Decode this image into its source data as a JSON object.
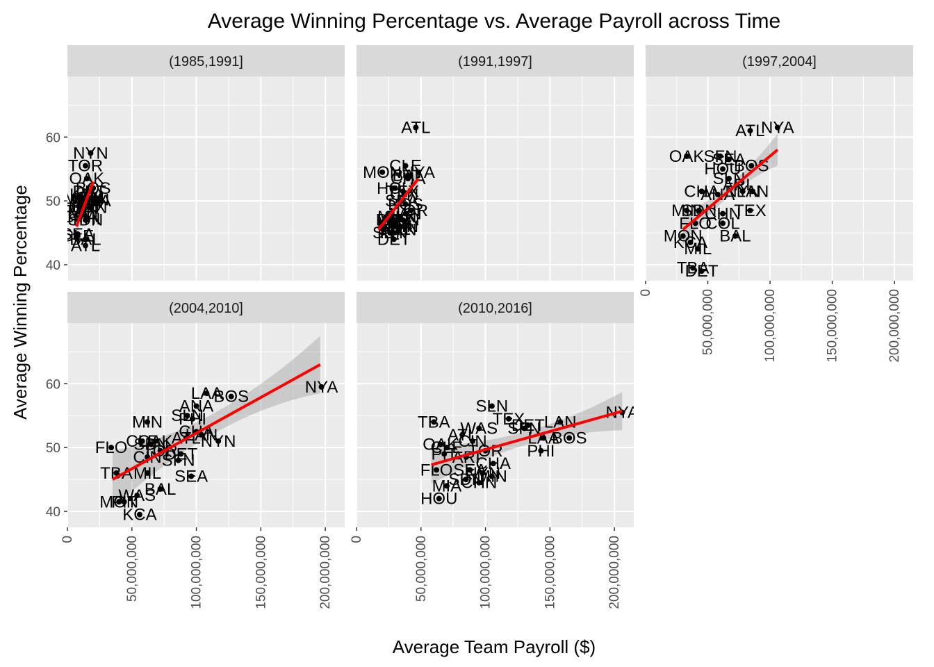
{
  "chart_data": {
    "type": "scatter",
    "title": "Average Winning Percentage vs. Average Payroll across Time",
    "xlabel": "Average Team Payroll ($)",
    "ylabel": "Average Winning Percentage",
    "x_tick_labels": [
      "0",
      "50,000,000",
      "100,000,000",
      "150,000,000",
      "200,000,000"
    ],
    "x_ticks": [
      0,
      50000000,
      100000000,
      150000000,
      200000000
    ],
    "xlim": [
      0,
      215000000
    ],
    "y_tick_labels": [
      "40",
      "50",
      "60"
    ],
    "y_ticks": [
      40,
      50,
      60
    ],
    "ylim": [
      37.5,
      69.5
    ],
    "grid": true,
    "trend": "linear fit with confidence band",
    "colors": {
      "panel": "#ebebeb",
      "strip": "#d9d9d9",
      "grid": "#ffffff",
      "fit_line": "#ff0000",
      "band": "#999999",
      "point": "#000000"
    },
    "panels": [
      {
        "label": "(1985,1991]",
        "fit": {
          "x": [
            7000000,
            20000000
          ],
          "y": [
            46,
            53
          ],
          "band": 1.8
        },
        "points": [
          {
            "team": "NYN",
            "x": 18000000,
            "y": 57.5
          },
          {
            "team": "TOR",
            "x": 14000000,
            "y": 55.5
          },
          {
            "team": "OAK",
            "x": 15000000,
            "y": 53.5
          },
          {
            "team": "BOS",
            "x": 20000000,
            "y": 52.0
          },
          {
            "team": "DET",
            "x": 17000000,
            "y": 51.5
          },
          {
            "team": "KCA",
            "x": 15000000,
            "y": 51.0
          },
          {
            "team": "CAL",
            "x": 19000000,
            "y": 50.5
          },
          {
            "team": "MON",
            "x": 12000000,
            "y": 50.5
          },
          {
            "team": "SLN",
            "x": 16000000,
            "y": 50.3
          },
          {
            "team": "LAN",
            "x": 20000000,
            "y": 50.2
          },
          {
            "team": "CIN",
            "x": 13000000,
            "y": 50.0
          },
          {
            "team": "MIL",
            "x": 14000000,
            "y": 50.0
          },
          {
            "team": "NYA",
            "x": 21000000,
            "y": 50.0
          },
          {
            "team": "SFN",
            "x": 15000000,
            "y": 49.8
          },
          {
            "team": "CHN",
            "x": 17000000,
            "y": 49.0
          },
          {
            "team": "HOU",
            "x": 12000000,
            "y": 49.2
          },
          {
            "team": "TEX",
            "x": 11000000,
            "y": 48.8
          },
          {
            "team": "MIN",
            "x": 12000000,
            "y": 48.3
          },
          {
            "team": "CHA",
            "x": 10000000,
            "y": 47.5
          },
          {
            "team": "PIT",
            "x": 10000000,
            "y": 47.5
          },
          {
            "team": "PHI",
            "x": 15000000,
            "y": 47.2
          },
          {
            "team": "SDN",
            "x": 14000000,
            "y": 47.0
          },
          {
            "team": "SEA",
            "x": 8000000,
            "y": 44.8
          },
          {
            "team": "CLE",
            "x": 8000000,
            "y": 44.5
          },
          {
            "team": "BAL",
            "x": 14000000,
            "y": 44.0
          },
          {
            "team": "ATL",
            "x": 14000000,
            "y": 43.0
          }
        ]
      },
      {
        "label": "(1991,1997]",
        "fit": {
          "x": [
            17000000,
            48000000
          ],
          "y": [
            45.5,
            53.5
          ],
          "band": 1.8
        },
        "points": [
          {
            "team": "ATL",
            "x": 46000000,
            "y": 61.5
          },
          {
            "team": "CLE",
            "x": 38000000,
            "y": 55.5
          },
          {
            "team": "NYA",
            "x": 48000000,
            "y": 54.5
          },
          {
            "team": "MON",
            "x": 20000000,
            "y": 54.5
          },
          {
            "team": "BAL",
            "x": 40000000,
            "y": 54.0
          },
          {
            "team": "CHA",
            "x": 40000000,
            "y": 53.5
          },
          {
            "team": "HOU",
            "x": 30000000,
            "y": 52.0
          },
          {
            "team": "TEX",
            "x": 36000000,
            "y": 51.5
          },
          {
            "team": "CIN",
            "x": 37000000,
            "y": 51.0
          },
          {
            "team": "SEA",
            "x": 35000000,
            "y": 50.0
          },
          {
            "team": "BOS",
            "x": 38000000,
            "y": 49.5
          },
          {
            "team": "TOR",
            "x": 42000000,
            "y": 48.5
          },
          {
            "team": "LAN",
            "x": 38000000,
            "y": 48.0
          },
          {
            "team": "MIL",
            "x": 27000000,
            "y": 47.5
          },
          {
            "team": "SLN",
            "x": 34000000,
            "y": 47.5
          },
          {
            "team": "CAL",
            "x": 32000000,
            "y": 47.0
          },
          {
            "team": "SFN",
            "x": 36000000,
            "y": 47.0
          },
          {
            "team": "PIT",
            "x": 25000000,
            "y": 47.0
          },
          {
            "team": "KCA",
            "x": 30000000,
            "y": 46.5
          },
          {
            "team": "MIN",
            "x": 28000000,
            "y": 46.0
          },
          {
            "team": "OAK",
            "x": 30000000,
            "y": 46.0
          },
          {
            "team": "CHN",
            "x": 34000000,
            "y": 46.0
          },
          {
            "team": "NYN",
            "x": 33000000,
            "y": 45.5
          },
          {
            "team": "SDN",
            "x": 26000000,
            "y": 45.0
          },
          {
            "team": "PHI",
            "x": 29000000,
            "y": 45.0
          },
          {
            "team": "DET",
            "x": 29000000,
            "y": 44.0
          }
        ]
      },
      {
        "label": "(1997,2004]",
        "fit": {
          "x": [
            30000000,
            106000000
          ],
          "y": [
            45.5,
            58
          ],
          "band": 2.5
        },
        "points": [
          {
            "team": "NYA",
            "x": 106000000,
            "y": 61.5
          },
          {
            "team": "ATL",
            "x": 84000000,
            "y": 61.0
          },
          {
            "team": "OAK",
            "x": 33000000,
            "y": 57.0
          },
          {
            "team": "SFN",
            "x": 60000000,
            "y": 57.0
          },
          {
            "team": "SEA",
            "x": 67000000,
            "y": 56.5
          },
          {
            "team": "BOS",
            "x": 85000000,
            "y": 55.5
          },
          {
            "team": "HOU",
            "x": 62000000,
            "y": 55.0
          },
          {
            "team": "SLN",
            "x": 67000000,
            "y": 53.5
          },
          {
            "team": "ARI",
            "x": 73000000,
            "y": 52.5
          },
          {
            "team": "LAN",
            "x": 86000000,
            "y": 51.5
          },
          {
            "team": "NYN",
            "x": 78000000,
            "y": 51.5
          },
          {
            "team": "CHA",
            "x": 45000000,
            "y": 51.5
          },
          {
            "team": "ANA",
            "x": 58000000,
            "y": 51.0
          },
          {
            "team": "MIN",
            "x": 33000000,
            "y": 48.5
          },
          {
            "team": "TEX",
            "x": 84000000,
            "y": 48.5
          },
          {
            "team": "SDN",
            "x": 43000000,
            "y": 48.5
          },
          {
            "team": "CHN",
            "x": 62000000,
            "y": 48.0
          },
          {
            "team": "FLO",
            "x": 40000000,
            "y": 46.5
          },
          {
            "team": "COL",
            "x": 62000000,
            "y": 46.5
          },
          {
            "team": "MON",
            "x": 30000000,
            "y": 44.5
          },
          {
            "team": "BAL",
            "x": 72000000,
            "y": 44.5
          },
          {
            "team": "KCA",
            "x": 36000000,
            "y": 43.5
          },
          {
            "team": "MIL",
            "x": 42000000,
            "y": 42.5
          },
          {
            "team": "TBA",
            "x": 38000000,
            "y": 39.5
          },
          {
            "team": "DET",
            "x": 45000000,
            "y": 39.0
          }
        ]
      },
      {
        "label": "(2004,2010]",
        "fit": {
          "x": [
            35000000,
            196000000
          ],
          "y": [
            45,
            63
          ],
          "band": 4.5
        },
        "points": [
          {
            "team": "NYA",
            "x": 197000000,
            "y": 59.5
          },
          {
            "team": "LAA",
            "x": 108000000,
            "y": 58.5
          },
          {
            "team": "BOS",
            "x": 127000000,
            "y": 58.0
          },
          {
            "team": "ANA",
            "x": 100000000,
            "y": 56.5
          },
          {
            "team": "SLN",
            "x": 93000000,
            "y": 55.0
          },
          {
            "team": "PHI",
            "x": 97000000,
            "y": 54.5
          },
          {
            "team": "MIN",
            "x": 62000000,
            "y": 54.0
          },
          {
            "team": "CHA",
            "x": 100000000,
            "y": 52.5
          },
          {
            "team": "LAN",
            "x": 104000000,
            "y": 52.0
          },
          {
            "team": "ATL",
            "x": 92000000,
            "y": 51.5
          },
          {
            "team": "OAK",
            "x": 68000000,
            "y": 51.0
          },
          {
            "team": "NYN",
            "x": 117000000,
            "y": 51.0
          },
          {
            "team": "CLE",
            "x": 58000000,
            "y": 51.0
          },
          {
            "team": "SDN",
            "x": 65000000,
            "y": 50.5
          },
          {
            "team": "FLO",
            "x": 34000000,
            "y": 50.0
          },
          {
            "team": "TOR",
            "x": 72000000,
            "y": 49.5
          },
          {
            "team": "DET",
            "x": 88000000,
            "y": 49.0
          },
          {
            "team": "CIN",
            "x": 62000000,
            "y": 48.5
          },
          {
            "team": "SFN",
            "x": 86000000,
            "y": 48.0
          },
          {
            "team": "TBA",
            "x": 38000000,
            "y": 46.0
          },
          {
            "team": "MIL",
            "x": 62000000,
            "y": 46.0
          },
          {
            "team": "SEA",
            "x": 96000000,
            "y": 45.5
          },
          {
            "team": "BAL",
            "x": 72000000,
            "y": 43.5
          },
          {
            "team": "WAS",
            "x": 54000000,
            "y": 42.5
          },
          {
            "team": "PIT",
            "x": 44000000,
            "y": 41.5
          },
          {
            "team": "MON",
            "x": 40000000,
            "y": 41.5
          },
          {
            "team": "KCA",
            "x": 56000000,
            "y": 39.5
          }
        ]
      },
      {
        "label": "(2010,2016]",
        "fit": {
          "x": [
            58000000,
            206000000
          ],
          "y": [
            47.3,
            55.7
          ],
          "band": 3.0
        },
        "points": [
          {
            "team": "NYA",
            "x": 206000000,
            "y": 55.5
          },
          {
            "team": "SLN",
            "x": 105000000,
            "y": 56.5
          },
          {
            "team": "TBA",
            "x": 60000000,
            "y": 54.0
          },
          {
            "team": "TEX",
            "x": 118000000,
            "y": 54.5
          },
          {
            "team": "LAN",
            "x": 158000000,
            "y": 54.0
          },
          {
            "team": "DET",
            "x": 133000000,
            "y": 53.5
          },
          {
            "team": "SFN",
            "x": 130000000,
            "y": 53.0
          },
          {
            "team": "WAS",
            "x": 95000000,
            "y": 53.0
          },
          {
            "team": "ATL",
            "x": 82000000,
            "y": 52.0
          },
          {
            "team": "BOS",
            "x": 165000000,
            "y": 51.5
          },
          {
            "team": "LAA",
            "x": 145000000,
            "y": 51.5
          },
          {
            "team": "CIN",
            "x": 90000000,
            "y": 51.0
          },
          {
            "team": "OAK",
            "x": 65000000,
            "y": 50.5
          },
          {
            "team": "CLE",
            "x": 70000000,
            "y": 50.0
          },
          {
            "team": "TOR",
            "x": 100000000,
            "y": 49.5
          },
          {
            "team": "PHI",
            "x": 143000000,
            "y": 49.5
          },
          {
            "team": "PIT",
            "x": 68000000,
            "y": 49.0
          },
          {
            "team": "ARI",
            "x": 85000000,
            "y": 48.5
          },
          {
            "team": "CHA",
            "x": 106000000,
            "y": 47.5
          },
          {
            "team": "FLO",
            "x": 62000000,
            "y": 46.5
          },
          {
            "team": "SEA",
            "x": 88000000,
            "y": 46.5
          },
          {
            "team": "NYN",
            "x": 98000000,
            "y": 46.0
          },
          {
            "team": "MIN",
            "x": 105000000,
            "y": 45.5
          },
          {
            "team": "SDN",
            "x": 85000000,
            "y": 45.0
          },
          {
            "team": "CHN",
            "x": 95000000,
            "y": 44.5
          },
          {
            "team": "MIA",
            "x": 70000000,
            "y": 44.0
          },
          {
            "team": "HOU",
            "x": 64000000,
            "y": 42.0
          }
        ]
      }
    ]
  }
}
